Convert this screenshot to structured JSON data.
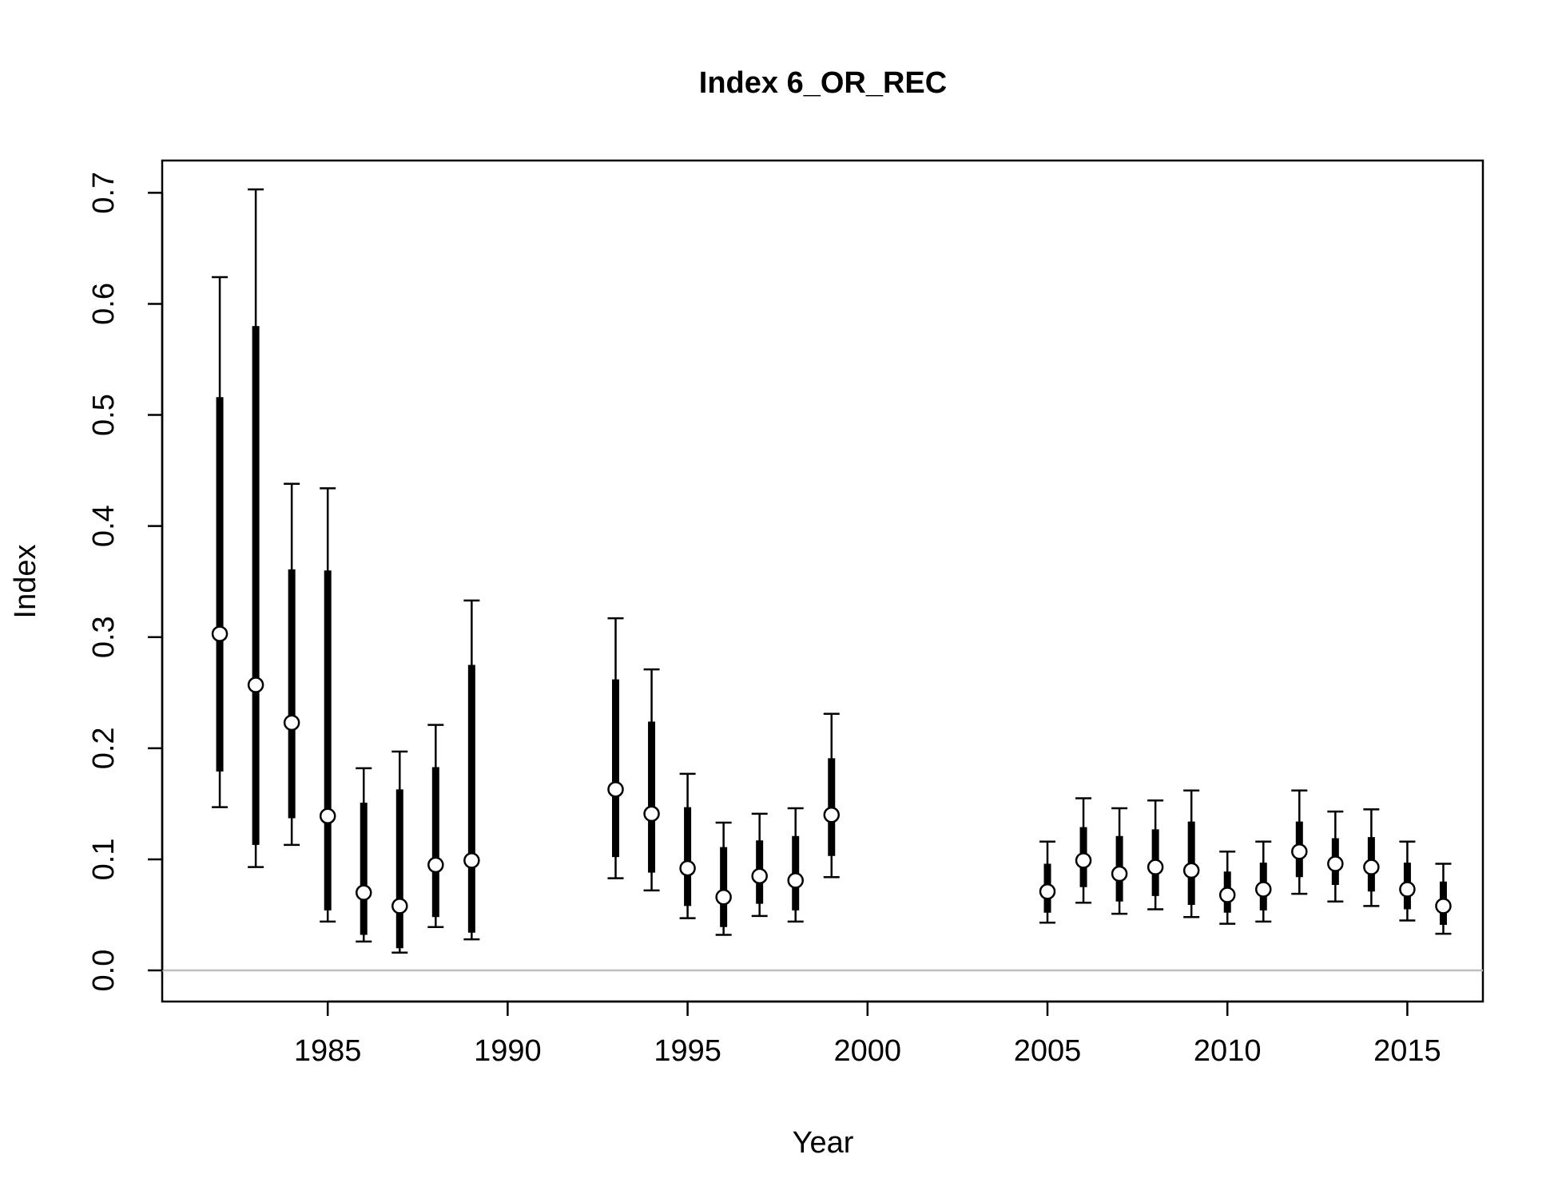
{
  "chart_data": {
    "type": "scatter",
    "title": "Index 6_OR_REC",
    "xlabel": "Year",
    "ylabel": "Index",
    "xlim": [
      1980.4,
      2017.1
    ],
    "ylim": [
      -0.028,
      0.729
    ],
    "x_ticks": [
      1985,
      1990,
      1995,
      2000,
      2005,
      2010,
      2015
    ],
    "y_ticks": [
      0.0,
      0.1,
      0.2,
      0.3,
      0.4,
      0.5,
      0.6,
      0.7
    ],
    "x_tick_labels": [
      "1985",
      "1990",
      "1995",
      "2000",
      "2005",
      "2010",
      "2015"
    ],
    "y_tick_labels": [
      "0.0",
      "0.1",
      "0.2",
      "0.3",
      "0.4",
      "0.5",
      "0.6",
      "0.7"
    ],
    "reference_line": {
      "y": 0.0,
      "color": "#bebebe"
    },
    "grid": false,
    "colors": {
      "points_fill": "#ffffff",
      "points_stroke": "#000000",
      "bars": "#000000"
    },
    "series": [
      {
        "x": [
          1982,
          1983,
          1984,
          1985,
          1986,
          1987,
          1988,
          1989,
          1993,
          1994,
          1995,
          1996,
          1997,
          1998,
          1999,
          2005,
          2006,
          2007,
          2008,
          2009,
          2010,
          2011,
          2012,
          2013,
          2014,
          2015,
          2016
        ],
        "y": [
          0.303,
          0.257,
          0.223,
          0.139,
          0.07,
          0.058,
          0.095,
          0.099,
          0.163,
          0.141,
          0.092,
          0.066,
          0.085,
          0.081,
          0.14,
          0.071,
          0.099,
          0.087,
          0.093,
          0.09,
          0.068,
          0.073,
          0.107,
          0.096,
          0.093,
          0.073,
          0.058
        ],
        "outer_low": [
          0.147,
          0.093,
          0.113,
          0.044,
          0.026,
          0.016,
          0.039,
          0.028,
          0.083,
          0.072,
          0.047,
          0.032,
          0.049,
          0.044,
          0.084,
          0.043,
          0.061,
          0.051,
          0.055,
          0.048,
          0.042,
          0.044,
          0.069,
          0.062,
          0.058,
          0.045,
          0.033
        ],
        "outer_high": [
          0.624,
          0.703,
          0.438,
          0.434,
          0.182,
          0.197,
          0.221,
          0.333,
          0.317,
          0.271,
          0.177,
          0.133,
          0.141,
          0.146,
          0.231,
          0.116,
          0.155,
          0.146,
          0.153,
          0.162,
          0.107,
          0.116,
          0.162,
          0.143,
          0.145,
          0.116,
          0.096
        ],
        "inner_low": [
          0.179,
          0.113,
          0.137,
          0.054,
          0.032,
          0.02,
          0.048,
          0.034,
          0.102,
          0.088,
          0.058,
          0.039,
          0.06,
          0.054,
          0.103,
          0.052,
          0.075,
          0.062,
          0.067,
          0.059,
          0.052,
          0.054,
          0.084,
          0.077,
          0.071,
          0.055,
          0.041
        ],
        "inner_high": [
          0.516,
          0.58,
          0.361,
          0.36,
          0.151,
          0.163,
          0.183,
          0.275,
          0.262,
          0.224,
          0.147,
          0.111,
          0.117,
          0.121,
          0.191,
          0.096,
          0.129,
          0.121,
          0.127,
          0.134,
          0.089,
          0.097,
          0.134,
          0.119,
          0.12,
          0.097,
          0.08
        ]
      }
    ]
  }
}
